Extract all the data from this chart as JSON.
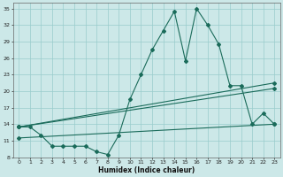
{
  "xlabel": "Humidex (Indice chaleur)",
  "bg_color": "#cce8e8",
  "grid_color": "#99cccc",
  "line_color": "#1a6b5a",
  "x": [
    0,
    1,
    2,
    3,
    4,
    5,
    6,
    7,
    8,
    9,
    10,
    11,
    12,
    13,
    14,
    15,
    16,
    17,
    18,
    19,
    20,
    21,
    22,
    23
  ],
  "series1": [
    13.5,
    13.5,
    12.0,
    10.0,
    10.0,
    10.0,
    10.0,
    9.0,
    8.5,
    12.0,
    18.5,
    23.0,
    27.5,
    31.0,
    34.5,
    25.5,
    35.0,
    32.0,
    28.5,
    21.0,
    21.0,
    14.0,
    16.0,
    14.0
  ],
  "line2_y": [
    13.5,
    21.5
  ],
  "line3_y": [
    13.5,
    20.5
  ],
  "line4_y": [
    11.5,
    14.0
  ],
  "line_x": [
    0,
    23
  ],
  "ylim": [
    8,
    36
  ],
  "yticks": [
    8,
    11,
    14,
    17,
    20,
    23,
    26,
    29,
    32,
    35
  ],
  "xlim": [
    -0.5,
    23.5
  ],
  "xticks": [
    0,
    1,
    2,
    3,
    4,
    5,
    6,
    7,
    8,
    9,
    10,
    11,
    12,
    13,
    14,
    15,
    16,
    17,
    18,
    19,
    20,
    21,
    22,
    23
  ]
}
